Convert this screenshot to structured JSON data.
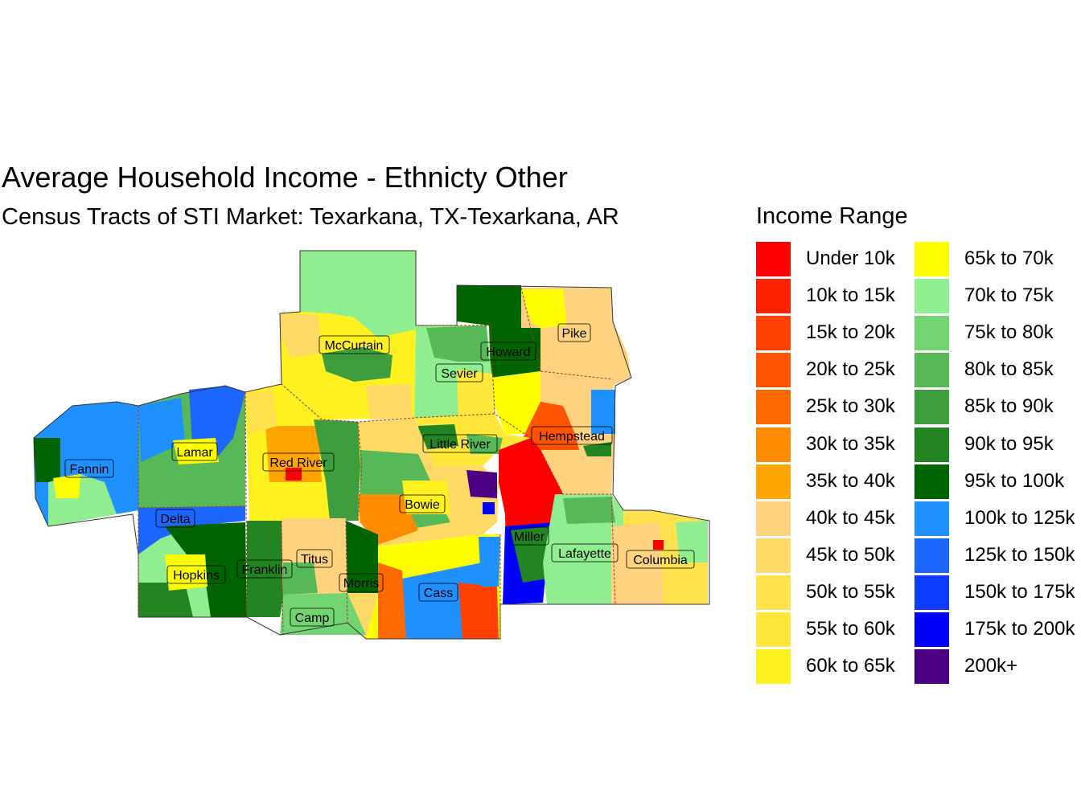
{
  "title": "Average Household Income - Ethnicty Other",
  "subtitle": "Census Tracts of STI Market: Texarkana, TX-Texarkana, AR",
  "legend": {
    "title": "Income Range",
    "items": [
      {
        "label": "Under 10k",
        "color": "#FF0000"
      },
      {
        "label": "10k to 15k",
        "color": "#FF2200"
      },
      {
        "label": "15k to 20k",
        "color": "#FF4000"
      },
      {
        "label": "20k to 25k",
        "color": "#FF5500"
      },
      {
        "label": "25k to 30k",
        "color": "#FF6A00"
      },
      {
        "label": "30k to 35k",
        "color": "#FF8C00"
      },
      {
        "label": "35k to 40k",
        "color": "#FFA500"
      },
      {
        "label": "40k to 45k",
        "color": "#FFD27F"
      },
      {
        "label": "45k to 50k",
        "color": "#FFD966"
      },
      {
        "label": "50k to 55k",
        "color": "#FFE24D"
      },
      {
        "label": "55k to 60k",
        "color": "#FFE83A"
      },
      {
        "label": "60k to 65k",
        "color": "#FFF020"
      },
      {
        "label": "65k to 70k",
        "color": "#FFFF00"
      },
      {
        "label": "70k to 75k",
        "color": "#90EE90"
      },
      {
        "label": "75k to 80k",
        "color": "#72D572"
      },
      {
        "label": "80k to 85k",
        "color": "#57B857"
      },
      {
        "label": "85k to 90k",
        "color": "#3E9E3E"
      },
      {
        "label": "90k to 95k",
        "color": "#228522"
      },
      {
        "label": "95k to 100k",
        "color": "#006400"
      },
      {
        "label": "100k to 125k",
        "color": "#1E90FF"
      },
      {
        "label": "125k to 150k",
        "color": "#1A66FF"
      },
      {
        "label": "150k to 175k",
        "color": "#0D3BFF"
      },
      {
        "label": "175k to 200k",
        "color": "#0000FF"
      },
      {
        "label": "200k+",
        "color": "#4B0082"
      }
    ]
  },
  "counties": [
    {
      "name": "McCurtain"
    },
    {
      "name": "Howard"
    },
    {
      "name": "Pike"
    },
    {
      "name": "Sevier"
    },
    {
      "name": "Little River"
    },
    {
      "name": "Hempstead"
    },
    {
      "name": "Lamar"
    },
    {
      "name": "Red River"
    },
    {
      "name": "Fannin"
    },
    {
      "name": "Bowie"
    },
    {
      "name": "Delta"
    },
    {
      "name": "Miller"
    },
    {
      "name": "Lafayette"
    },
    {
      "name": "Columbia"
    },
    {
      "name": "Titus"
    },
    {
      "name": "Hopkins"
    },
    {
      "name": "Franklin"
    },
    {
      "name": "Morris"
    },
    {
      "name": "Cass"
    },
    {
      "name": "Camp"
    }
  ]
}
